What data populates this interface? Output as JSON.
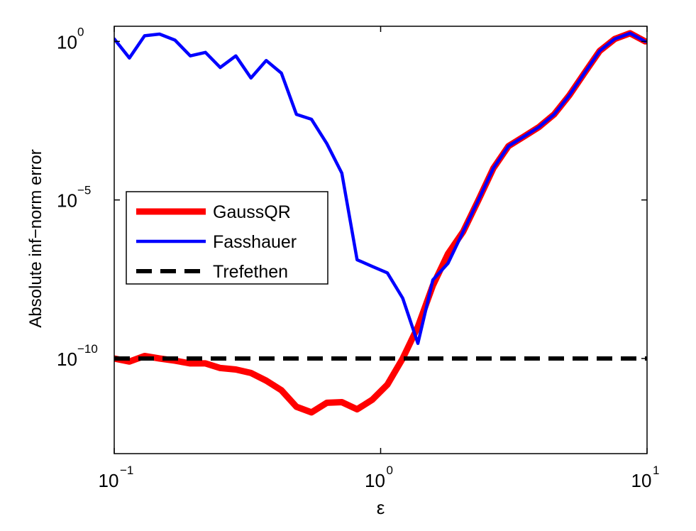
{
  "chart_data": {
    "type": "line",
    "xlabel": "ε",
    "ylabel": "Absolute inf−norm error",
    "xscale": "log",
    "yscale": "log",
    "xlim": [
      0.1,
      10
    ],
    "ylim": [
      1e-13,
      3.0
    ],
    "x_ticks": [
      {
        "value": 0.1,
        "base": "10",
        "exp": "−1"
      },
      {
        "value": 1,
        "base": "10",
        "exp": "0"
      },
      {
        "value": 10,
        "base": "10",
        "exp": "1"
      }
    ],
    "y_ticks": [
      {
        "value": 1e-10,
        "base": "10",
        "exp": "−10"
      },
      {
        "value": 1e-05,
        "base": "10",
        "exp": "−5"
      },
      {
        "value": 1,
        "base": "10",
        "exp": "0"
      }
    ],
    "legend_position": "center-left",
    "series": [
      {
        "name": "GaussQR",
        "color": "#ff0000",
        "style": "solid",
        "x": [
          0.1,
          0.114,
          0.13,
          0.148,
          0.169,
          0.193,
          0.22,
          0.25,
          0.286,
          0.326,
          0.372,
          0.424,
          0.483,
          0.55,
          0.628,
          0.715,
          0.816,
          0.93,
          1.06,
          1.21,
          1.38,
          1.57,
          1.79,
          2.04,
          2.33,
          2.65,
          3.02,
          3.45,
          3.93,
          4.48,
          5.11,
          5.82,
          6.64,
          7.57,
          8.63,
          9.84
        ],
        "y": [
          1e-10,
          8e-11,
          1.2e-10,
          1e-10,
          8.5e-11,
          7e-11,
          7e-11,
          5e-11,
          4.5e-11,
          3.5e-11,
          2e-11,
          1e-11,
          3e-12,
          2e-12,
          4e-12,
          4.2e-12,
          2.5e-12,
          5e-12,
          1.5e-11,
          1e-10,
          1e-09,
          2e-08,
          2e-07,
          1e-06,
          1e-05,
          0.0001,
          0.0005,
          0.001,
          0.002,
          0.005,
          0.02,
          0.1,
          0.5,
          1.2,
          1.8,
          1.0
        ]
      },
      {
        "name": "Fasshauer",
        "color": "#0000ff",
        "style": "solid",
        "x": [
          0.1,
          0.114,
          0.13,
          0.148,
          0.169,
          0.193,
          0.22,
          0.25,
          0.286,
          0.326,
          0.372,
          0.424,
          0.483,
          0.55,
          0.628,
          0.715,
          0.816,
          0.93,
          1.06,
          1.21,
          1.38,
          1.57,
          1.79,
          2.04,
          2.33,
          2.65,
          3.02,
          3.45,
          3.93,
          4.48,
          5.11,
          5.82,
          6.64,
          7.57,
          8.63,
          9.84
        ],
        "y": [
          1.2,
          0.3,
          1.5,
          1.7,
          1.1,
          0.35,
          0.45,
          0.15,
          0.35,
          0.07,
          0.25,
          0.1,
          0.005,
          0.0035,
          0.0006,
          7e-05,
          1.3e-07,
          8e-08,
          5e-08,
          8e-09,
          3e-10,
          3e-08,
          1e-07,
          1e-06,
          1e-05,
          0.0001,
          0.0005,
          0.001,
          0.002,
          0.005,
          0.02,
          0.1,
          0.5,
          1.2,
          1.8,
          1.0
        ]
      },
      {
        "name": "Trefethen",
        "color": "#000000",
        "style": "dashed",
        "x": [
          0.1,
          10
        ],
        "y": [
          1e-10,
          1e-10
        ]
      }
    ]
  }
}
